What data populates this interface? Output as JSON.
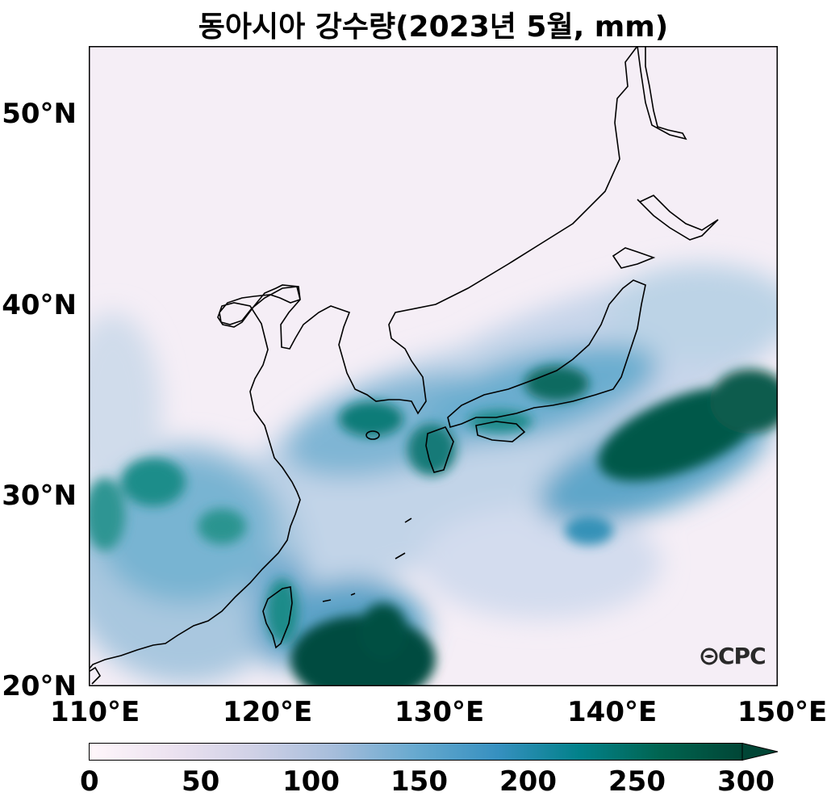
{
  "title": "동아시아 강수량(2023년 5월, mm)",
  "map": {
    "lat_ticks": [
      "50°N",
      "40°N",
      "30°N",
      "20°N"
    ],
    "lon_ticks": [
      "110°E",
      "120°E",
      "130°E",
      "140°E",
      "150°E"
    ],
    "extent": {
      "lon": [
        110,
        150
      ],
      "lat": [
        20,
        53.5
      ]
    }
  },
  "colorbar": {
    "ticks": [
      "0",
      "50",
      "100",
      "150",
      "200",
      "250",
      "300"
    ],
    "colors": [
      "#fff7fb",
      "#ece2f0",
      "#d0d1e6",
      "#a6bddb",
      "#67a9cf",
      "#3690c0",
      "#02818a",
      "#016450",
      "#014636"
    ],
    "extend": "max"
  },
  "logo": "CPC",
  "colors": {
    "frame": "#000000",
    "coastline": "#000000"
  }
}
